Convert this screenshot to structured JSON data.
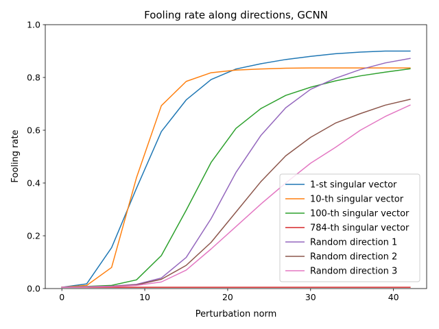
{
  "chart_data": {
    "type": "line",
    "title": "Fooling rate along directions, GCNN",
    "xlabel": "Perturbation norm",
    "ylabel": "Fooling rate",
    "xlim": [
      -2,
      44
    ],
    "ylim": [
      0,
      1.0
    ],
    "xticks": [
      0,
      10,
      20,
      30,
      40
    ],
    "yticks": [
      0.0,
      0.2,
      0.4,
      0.6,
      0.8,
      1.0
    ],
    "grid": false,
    "legend_position": "lower-right",
    "x": [
      0,
      3,
      6,
      9,
      12,
      15,
      18,
      21,
      24,
      27,
      30,
      33,
      36,
      39,
      42
    ],
    "series": [
      {
        "name": "1-st singular vector",
        "color": "#1f77b4",
        "values": [
          0.005,
          0.018,
          0.155,
          0.38,
          0.595,
          0.715,
          0.792,
          0.832,
          0.852,
          0.868,
          0.88,
          0.89,
          0.896,
          0.9,
          0.9
        ]
      },
      {
        "name": "10-th singular vector",
        "color": "#ff7f0e",
        "values": [
          0.005,
          0.012,
          0.08,
          0.42,
          0.693,
          0.785,
          0.818,
          0.828,
          0.832,
          0.835,
          0.836,
          0.836,
          0.836,
          0.836,
          0.836
        ]
      },
      {
        "name": "100-th singular vector",
        "color": "#2ca02c",
        "values": [
          0.005,
          0.008,
          0.012,
          0.033,
          0.125,
          0.297,
          0.478,
          0.607,
          0.682,
          0.732,
          0.763,
          0.787,
          0.806,
          0.82,
          0.833
        ]
      },
      {
        "name": "784-th singular vector",
        "color": "#d62728",
        "values": [
          0.005,
          0.005,
          0.005,
          0.005,
          0.005,
          0.005,
          0.005,
          0.005,
          0.005,
          0.005,
          0.005,
          0.005,
          0.005,
          0.005,
          0.005
        ]
      },
      {
        "name": "Random direction 1",
        "color": "#9467bd",
        "values": [
          0.005,
          0.007,
          0.009,
          0.016,
          0.04,
          0.118,
          0.265,
          0.44,
          0.58,
          0.685,
          0.755,
          0.797,
          0.83,
          0.855,
          0.872
        ]
      },
      {
        "name": "Random direction 2",
        "color": "#8c564b",
        "values": [
          0.005,
          0.006,
          0.008,
          0.014,
          0.035,
          0.088,
          0.175,
          0.29,
          0.405,
          0.503,
          0.573,
          0.627,
          0.663,
          0.695,
          0.717
        ]
      },
      {
        "name": "Random direction 3",
        "color": "#e377c2",
        "values": [
          0.005,
          0.006,
          0.007,
          0.012,
          0.025,
          0.07,
          0.15,
          0.235,
          0.32,
          0.4,
          0.475,
          0.535,
          0.6,
          0.652,
          0.695
        ]
      }
    ]
  }
}
